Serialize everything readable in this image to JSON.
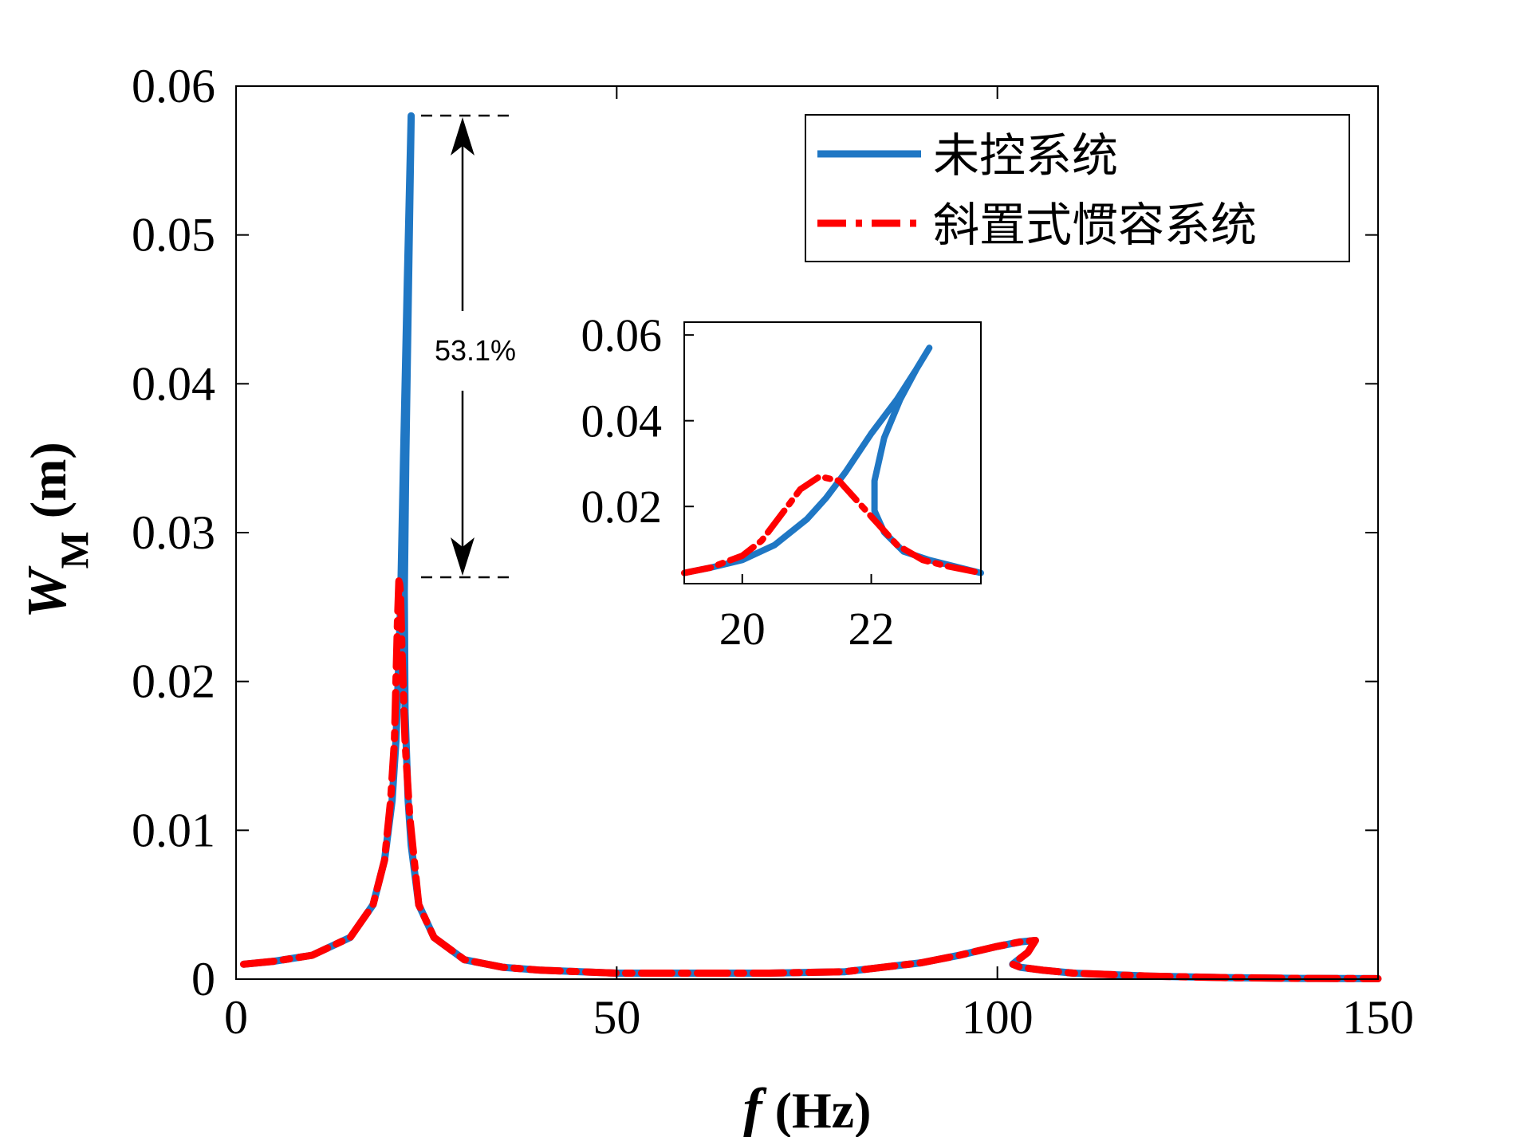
{
  "chart_data": [
    {
      "type": "line",
      "title": "",
      "xlabel_var": "f",
      "xlabel_unit": " (Hz)",
      "ylabel_var": "W",
      "ylabel_sub": "M",
      "ylabel_unit": " (m)",
      "xlim": [
        0,
        150
      ],
      "ylim": [
        0,
        0.06
      ],
      "xticks": [
        0,
        50,
        100,
        150
      ],
      "xtick_labels": [
        "0",
        "50",
        "100",
        "150"
      ],
      "yticks": [
        0,
        0.01,
        0.02,
        0.03,
        0.04,
        0.05,
        0.06
      ],
      "ytick_labels": [
        "0",
        "0.01",
        "0.02",
        "0.03",
        "0.04",
        "0.05",
        "0.06"
      ],
      "grid": false,
      "legend_position": "top-right",
      "series": [
        {
          "name": "未控系统",
          "color": "#1f77c4",
          "style": "solid",
          "x": [
            1,
            5,
            10,
            15,
            18,
            19.5,
            20.5,
            21,
            21.3,
            21.6,
            22,
            22.5,
            23,
            23,
            22.6,
            22.3,
            22.1,
            22.2,
            22.6,
            23,
            24,
            26,
            30,
            35,
            40,
            50,
            60,
            70,
            80,
            90,
            95,
            100,
            103,
            105,
            104,
            102.5,
            102,
            103,
            106,
            110,
            120,
            130,
            140,
            150
          ],
          "y": [
            0.001,
            0.0012,
            0.0016,
            0.0028,
            0.005,
            0.008,
            0.012,
            0.016,
            0.02,
            0.025,
            0.035,
            0.047,
            0.058,
            0.058,
            0.045,
            0.035,
            0.026,
            0.018,
            0.012,
            0.009,
            0.005,
            0.0028,
            0.0013,
            0.0008,
            0.0006,
            0.0004,
            0.0004,
            0.0004,
            0.0005,
            0.0011,
            0.0016,
            0.0022,
            0.0025,
            0.0026,
            0.0018,
            0.0012,
            0.001,
            0.0008,
            0.0006,
            0.0004,
            0.0002,
            0.0001,
            5e-05,
            3e-05
          ]
        },
        {
          "name": "斜置式惯容系统",
          "color": "#ff0000",
          "style": "dashdot",
          "x": [
            1,
            5,
            10,
            15,
            18,
            19.5,
            20.3,
            20.8,
            21,
            21.2,
            21.4,
            21.6,
            21.8,
            22.2,
            22.8,
            24,
            26,
            30,
            35,
            40,
            50,
            60,
            70,
            80,
            90,
            95,
            100,
            103,
            105,
            104,
            102.5,
            102,
            103,
            106,
            110,
            120,
            130,
            140,
            150
          ],
          "y": [
            0.001,
            0.0012,
            0.0016,
            0.0028,
            0.005,
            0.008,
            0.012,
            0.016,
            0.02,
            0.024,
            0.027,
            0.026,
            0.022,
            0.016,
            0.011,
            0.005,
            0.0028,
            0.0013,
            0.0008,
            0.0006,
            0.0004,
            0.0004,
            0.0004,
            0.0005,
            0.0011,
            0.0016,
            0.0022,
            0.0025,
            0.0026,
            0.0018,
            0.0012,
            0.001,
            0.0008,
            0.0006,
            0.0004,
            0.0002,
            0.0001,
            5e-05,
            3e-05
          ]
        }
      ],
      "annotations": [
        {
          "text": "53.1%",
          "x": 30.8,
          "y": 0.0425,
          "type": "arrow-range",
          "from_y": 0.058,
          "to_y": 0.027
        }
      ]
    },
    {
      "type": "line",
      "title": "",
      "inset": true,
      "xlim": [
        19.1,
        23.7
      ],
      "ylim": [
        0.002,
        0.063
      ],
      "xticks": [
        20,
        22
      ],
      "xtick_labels": [
        "20",
        "22"
      ],
      "yticks": [
        0.02,
        0.04,
        0.06
      ],
      "ytick_labels": [
        "0.02",
        "0.04",
        "0.06"
      ],
      "series": [
        {
          "name": "未控系统",
          "color": "#1f77c4",
          "style": "solid",
          "x": [
            19.1,
            19.5,
            20,
            20.5,
            21,
            21.3,
            21.6,
            22,
            22.4,
            22.7,
            22.9,
            22.7,
            22.45,
            22.2,
            22.05,
            22.05,
            22.2,
            22.5,
            22.9,
            23.3,
            23.7
          ],
          "y": [
            0.0045,
            0.0057,
            0.0075,
            0.011,
            0.017,
            0.022,
            0.028,
            0.037,
            0.045,
            0.052,
            0.057,
            0.052,
            0.045,
            0.036,
            0.026,
            0.019,
            0.014,
            0.0095,
            0.0075,
            0.006,
            0.0045
          ]
        },
        {
          "name": "斜置式惯容系统",
          "color": "#ff0000",
          "style": "dashdot",
          "x": [
            19.1,
            19.5,
            20,
            20.3,
            20.6,
            20.9,
            21.2,
            21.5,
            21.8,
            22.1,
            22.4,
            22.8,
            23.2,
            23.7
          ],
          "y": [
            0.0045,
            0.0057,
            0.0085,
            0.012,
            0.018,
            0.024,
            0.027,
            0.026,
            0.021,
            0.016,
            0.011,
            0.0075,
            0.006,
            0.0045
          ]
        }
      ]
    }
  ]
}
